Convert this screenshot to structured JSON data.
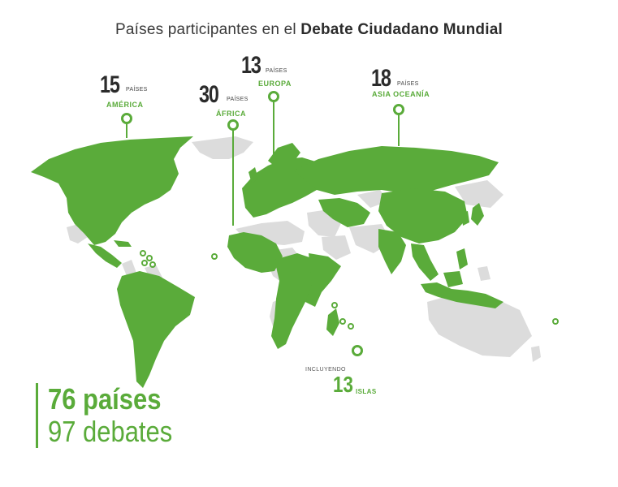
{
  "title": {
    "normal": "Países participantes en el ",
    "bold": "Debate Ciudadano Mundial"
  },
  "callouts": {
    "america": {
      "number": "15",
      "unit": "PAÍSES",
      "region": "AMÉRICA"
    },
    "africa": {
      "number": "30",
      "unit": "PAÍSES",
      "region": "ÁFRICA"
    },
    "europa": {
      "number": "13",
      "unit": "PAÍSES",
      "region": "EUROPA"
    },
    "asia": {
      "number": "18",
      "unit": "PAÍSES",
      "region": "ASIA OCEANÍA"
    }
  },
  "islands": {
    "prefix": "INCLUYENDO",
    "number": "13",
    "unit": "ISLAS"
  },
  "totals": {
    "countries": "76 países",
    "debates": "97 debates"
  },
  "colors": {
    "participant": "#5aab3a",
    "non_participant": "#dcdcdc",
    "text": "#2b2b2b"
  }
}
